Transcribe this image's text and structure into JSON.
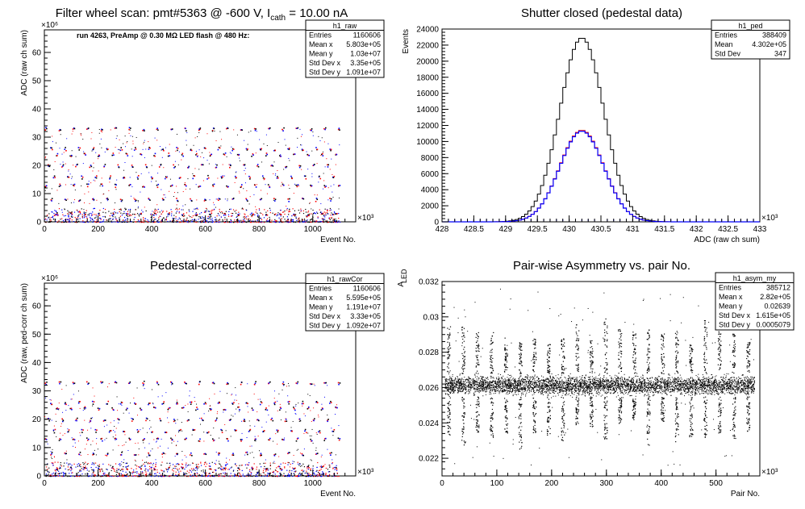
{
  "chart_data": [
    {
      "id": "raw",
      "type": "scatter",
      "title": "Filter wheel scan: pmt#5363 @  -600 V, I",
      "title_sub": "cath",
      "title_tail": " = 10.00 nA",
      "annotation": "run 4263, PreAmp @ 0.30 MΩ LED flash @  480 Hz:",
      "xlabel": "Event No.",
      "ylabel": "ADC (raw ch sum)",
      "x_exponent": "×10³",
      "y_exponent": "×10⁶",
      "xlim": [
        0,
        1160
      ],
      "ylim": [
        0,
        68
      ],
      "x_ticks": [
        "0",
        "200",
        "400",
        "600",
        "800",
        "1000"
      ],
      "y_ticks": [
        "0",
        "10",
        "20",
        "30",
        "40",
        "50",
        "60"
      ],
      "levels": [
        33,
        26,
        24,
        20,
        16,
        13,
        8,
        3
      ],
      "flash_period": 52,
      "x_span": [
        0,
        1100
      ],
      "series_colors": [
        "#ff0000",
        "#0000ff",
        "#000000"
      ],
      "stats": {
        "name": "h1_raw",
        "rows": [
          [
            "Entries",
            "1160606"
          ],
          [
            "Mean x",
            "5.803e+05"
          ],
          [
            "Mean y",
            "1.03e+07"
          ],
          [
            "Std Dev x",
            "3.35e+05"
          ],
          [
            "Std Dev y",
            "1.091e+07"
          ]
        ]
      }
    },
    {
      "id": "ped",
      "type": "line",
      "title": "Shutter closed (pedestal data)",
      "xlabel": "ADC (raw ch sum)",
      "ylabel": "Events",
      "x_exponent": "×10³",
      "xlim": [
        428,
        433
      ],
      "ylim": [
        0,
        24000
      ],
      "x_ticks": [
        "428",
        "428.5",
        "429",
        "429.5",
        "430",
        "430.5",
        "431",
        "431.5",
        "432",
        "432.5",
        "433"
      ],
      "y_ticks": [
        "0",
        "2000",
        "4000",
        "6000",
        "8000",
        "10000",
        "12000",
        "14000",
        "16000",
        "18000",
        "20000",
        "22000",
        "24000"
      ],
      "series": [
        {
          "name": "",
          "color": "#000000",
          "mean": 430.2,
          "sigma": 0.347,
          "peak": 22900
        },
        {
          "name": "",
          "color": "#ff0000",
          "mean": 430.2,
          "sigma": 0.347,
          "peak": 11400
        },
        {
          "name": "",
          "color": "#0000ff",
          "mean": 430.2,
          "sigma": 0.347,
          "peak": 11300
        }
      ],
      "stats": {
        "name": "h1_ped",
        "rows": [
          [
            "Entries",
            "388409"
          ],
          [
            "Mean",
            "4.302e+05"
          ],
          [
            "Std Dev",
            "347"
          ]
        ]
      }
    },
    {
      "id": "rawcor",
      "type": "scatter",
      "title": "Pedestal-corrected",
      "xlabel": "Event No.",
      "ylabel": "ADC (raw, ped-corr ch sum)",
      "x_exponent": "×10³",
      "y_exponent": "×10⁶",
      "xlim": [
        0,
        1160
      ],
      "ylim": [
        0,
        68
      ],
      "x_ticks": [
        "0",
        "200",
        "400",
        "600",
        "800",
        "1000"
      ],
      "y_ticks": [
        "0",
        "10",
        "20",
        "30",
        "40",
        "50",
        "60"
      ],
      "levels": [
        33,
        26,
        24,
        20,
        16,
        13,
        8,
        3
      ],
      "flash_period": 52,
      "x_span": [
        0,
        1100
      ],
      "series_colors": [
        "#ff0000",
        "#0000ff",
        "#000000"
      ],
      "stats": {
        "name": "h1_rawCor",
        "rows": [
          [
            "Entries",
            "1160606"
          ],
          [
            "Mean x",
            "5.595e+05"
          ],
          [
            "Mean y",
            "1.191e+07"
          ],
          [
            "Std Dev x",
            "3.33e+05"
          ],
          [
            "Std Dev y",
            "1.092e+07"
          ]
        ]
      }
    },
    {
      "id": "asym",
      "type": "scatter",
      "title": "Pair-wise Asymmetry vs. pair No.",
      "xlabel": "Pair No.",
      "ylabel": "A",
      "ylabel_sub": "LED",
      "x_exponent": "×10³",
      "xlim": [
        0,
        580
      ],
      "ylim": [
        0.021,
        0.032
      ],
      "x_ticks": [
        "0",
        "100",
        "200",
        "300",
        "400",
        "500"
      ],
      "y_ticks": [
        "0.022",
        "0.024",
        "0.026",
        "0.028",
        "0.03",
        "0.032"
      ],
      "band": [
        0.0255,
        0.0268
      ],
      "x_span": [
        5,
        570
      ],
      "spike_period": 26,
      "stats": {
        "name": "h1_asym_my",
        "rows": [
          [
            "Entries",
            "385712"
          ],
          [
            "Mean x",
            "2.82e+05"
          ],
          [
            "Mean y",
            "0.02639"
          ],
          [
            "Std Dev x",
            "1.615e+05"
          ],
          [
            "Std Dev y",
            "0.0005079"
          ]
        ]
      }
    }
  ]
}
